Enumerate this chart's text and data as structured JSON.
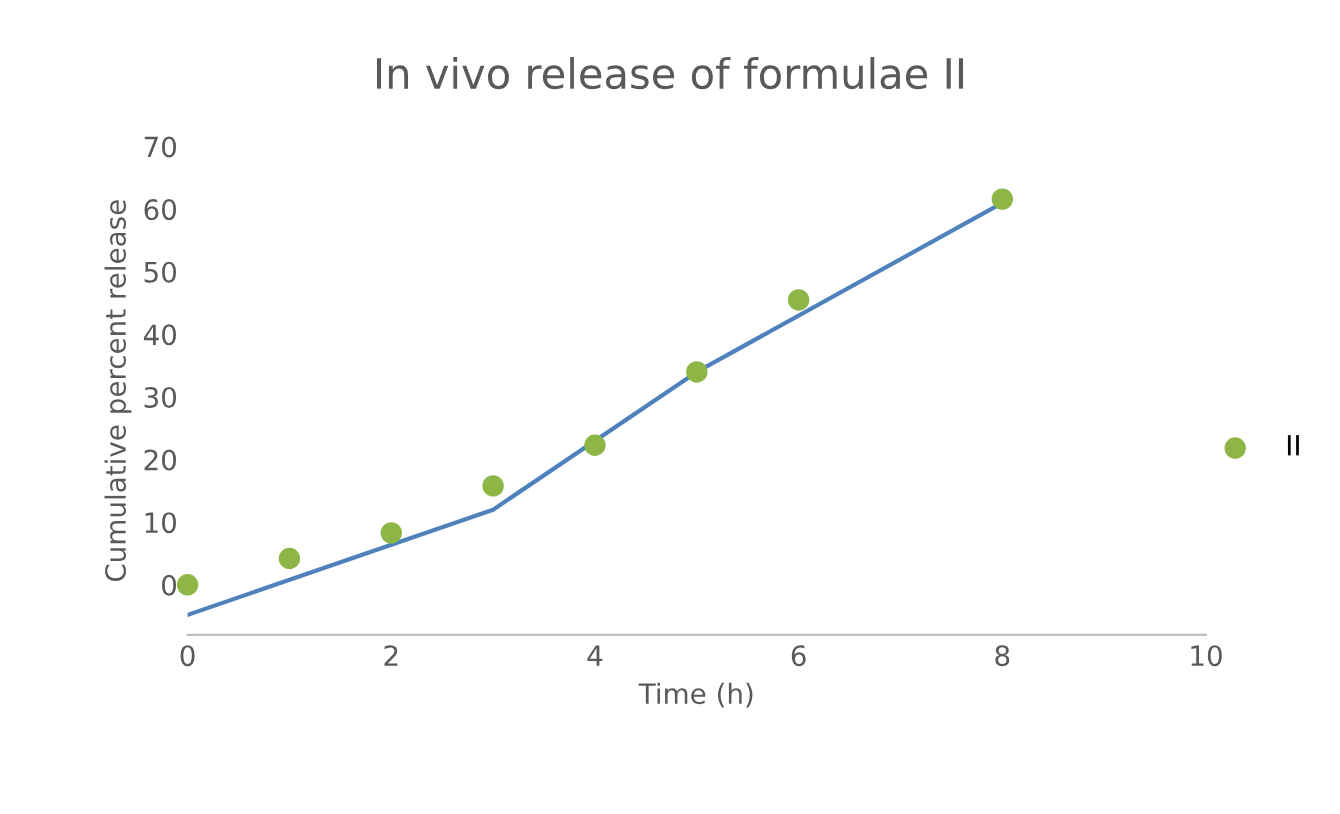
{
  "chart_data": {
    "type": "scatter",
    "title": "In vivo release of formulae II",
    "xlabel": "Time (h)",
    "ylabel": "Cumulative percent release",
    "x": [
      0,
      1,
      2,
      3,
      4,
      5,
      6,
      8
    ],
    "series": [
      {
        "name": "II",
        "color": "#8db646",
        "values": [
          0,
          4.2,
          8.3,
          15.8,
          22.3,
          34,
          45.5,
          61.6
        ],
        "marker": "circle"
      },
      {
        "type": "line",
        "color": "#4f81bd",
        "x": [
          0,
          3,
          5,
          8
        ],
        "values": [
          -4.8,
          12,
          34,
          61
        ],
        "marker": "none"
      }
    ],
    "xlim": [
      0,
      10
    ],
    "xticks": [
      0,
      2,
      4,
      6,
      8,
      10
    ],
    "ylim": [
      -8,
      70
    ],
    "yticks": [
      0,
      10,
      20,
      30,
      40,
      50,
      60,
      70
    ],
    "grid": false,
    "legend": "right"
  }
}
